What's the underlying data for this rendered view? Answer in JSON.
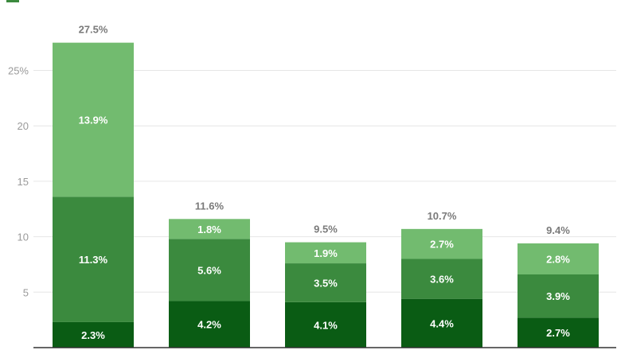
{
  "chart_data": {
    "type": "bar",
    "stacked": true,
    "categories": [
      "",
      "",
      "",
      "",
      ""
    ],
    "series": [
      {
        "values": [
          2.3,
          4.2,
          4.1,
          4.4,
          2.7
        ],
        "labels": [
          "2.3%",
          "4.2%",
          "4.1%",
          "4.4%",
          "2.7%"
        ],
        "color": "#0a5c14"
      },
      {
        "values": [
          11.3,
          5.6,
          3.5,
          3.6,
          3.9
        ],
        "labels": [
          "11.3%",
          "5.6%",
          "3.5%",
          "3.6%",
          "3.9%"
        ],
        "color": "#3b8a3e"
      },
      {
        "values": [
          13.9,
          1.8,
          1.9,
          2.7,
          2.8
        ],
        "labels": [
          "13.9%",
          "1.8%",
          "1.9%",
          "2.7%",
          "2.8%"
        ],
        "color": "#72bb6f"
      }
    ],
    "totals": [
      27.5,
      11.6,
      9.5,
      10.7,
      9.4
    ],
    "total_labels": [
      "27.5%",
      "11.6%",
      "9.5%",
      "10.7%",
      "9.4%"
    ],
    "yticks": [
      5,
      10,
      15,
      20,
      25
    ],
    "ytick_labels": [
      "5",
      "10",
      "15",
      "20",
      "25%"
    ],
    "ylim": [
      0,
      28
    ],
    "grid": true,
    "legend_color": "#3b8a3e"
  }
}
